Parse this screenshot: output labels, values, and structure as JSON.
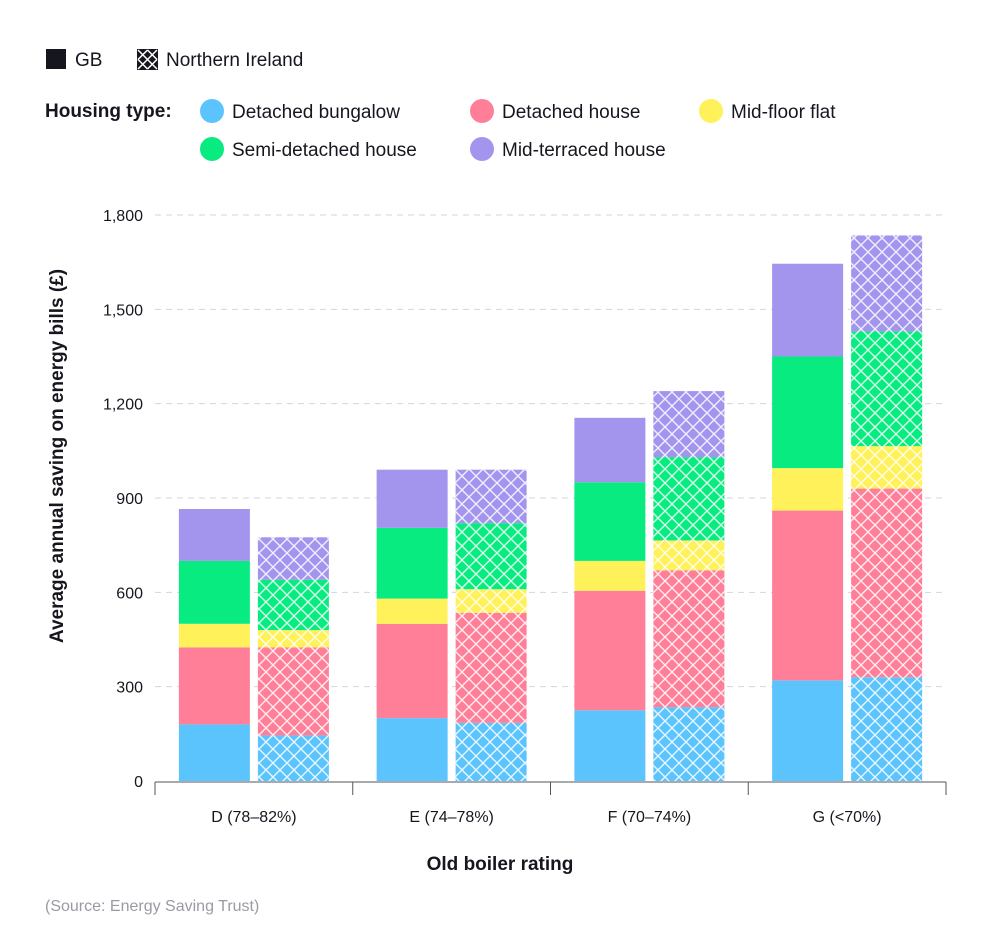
{
  "legend": {
    "region_items": [
      {
        "label": "GB",
        "pattern": "solid"
      },
      {
        "label": "Northern Ireland",
        "pattern": "hatch"
      }
    ],
    "housing_title": "Housing type:"
  },
  "source": "(Source: Energy Saving Trust)",
  "chart_data": {
    "type": "bar",
    "stacked": true,
    "grouped": true,
    "categories": [
      "D (78–82%)",
      "E (74–78%)",
      "F (70–74%)",
      "G (<70%)"
    ],
    "groups": [
      "GB",
      "Northern Ireland"
    ],
    "xlabel": "Old boiler rating",
    "ylabel": "Average annual saving on energy bills (£)",
    "ylim": [
      0,
      1800
    ],
    "yticks": [
      0,
      300,
      600,
      900,
      1200,
      1500,
      1800
    ],
    "ytick_labels": [
      "0",
      "300",
      "600",
      "900",
      "1,200",
      "1,500",
      "1,800"
    ],
    "grid": true,
    "series": [
      {
        "name": "Detached bungalow",
        "color": "#5bc4fd",
        "values": {
          "GB": [
            180,
            200,
            225,
            320
          ],
          "Northern Ireland": [
            145,
            185,
            235,
            330
          ]
        }
      },
      {
        "name": "Detached house",
        "color": "#ff7f98",
        "values": {
          "GB": [
            245,
            300,
            380,
            540
          ],
          "Northern Ireland": [
            280,
            350,
            435,
            600
          ]
        }
      },
      {
        "name": "Mid-floor flat",
        "color": "#fff15a",
        "values": {
          "GB": [
            75,
            80,
            95,
            135
          ],
          "Northern Ireland": [
            55,
            75,
            95,
            135
          ]
        }
      },
      {
        "name": "Semi-detached house",
        "color": "#08eb80",
        "values": {
          "GB": [
            200,
            225,
            250,
            355
          ],
          "Northern Ireland": [
            160,
            210,
            265,
            365
          ]
        }
      },
      {
        "name": "Mid-terraced house",
        "color": "#a394ee",
        "values": {
          "GB": [
            165,
            185,
            205,
            295
          ],
          "Northern Ireland": [
            135,
            170,
            210,
            305
          ]
        }
      }
    ],
    "legend_order": [
      "Detached bungalow",
      "Detached house",
      "Mid-floor flat",
      "Semi-detached house",
      "Mid-terraced house"
    ]
  }
}
